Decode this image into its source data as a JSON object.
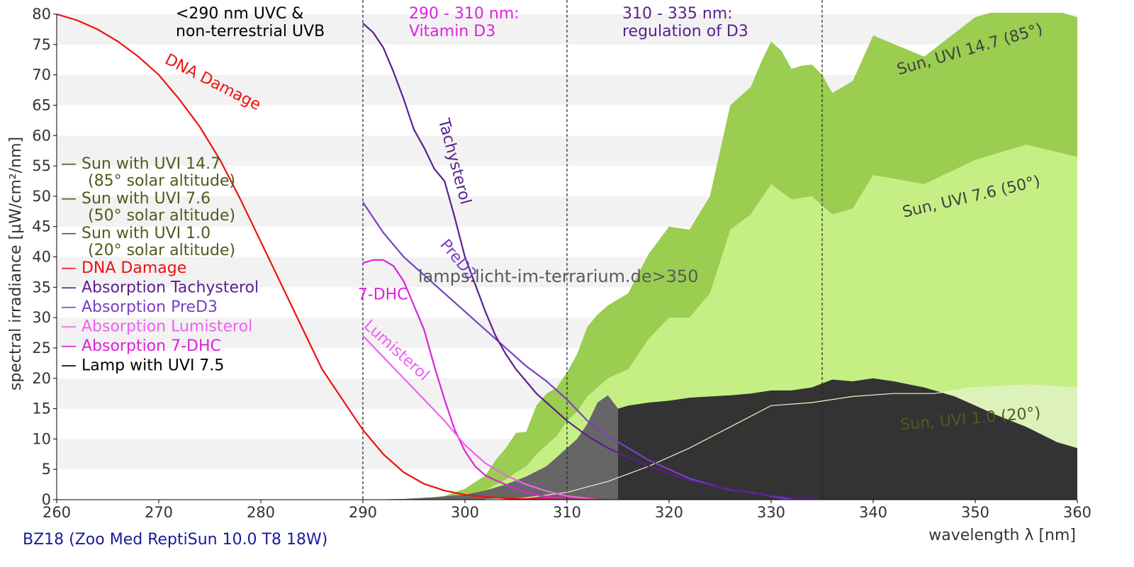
{
  "footer_label": "BZ18 (Zoo Med ReptiSun 10.0 T8 18W)",
  "watermark": "lamps.licht-im-terrarium.de>350",
  "chart_data": {
    "type": "area",
    "xlabel": "wavelength λ [nm]",
    "ylabel": "spectral irradiance [µW/cm²/nm]",
    "xlim": [
      260,
      360
    ],
    "ylim": [
      0,
      80
    ],
    "xticks": [
      260,
      270,
      280,
      290,
      300,
      310,
      320,
      330,
      340,
      350,
      360
    ],
    "yticks": [
      0,
      5,
      10,
      15,
      20,
      25,
      30,
      35,
      40,
      45,
      50,
      55,
      60,
      65,
      70,
      75,
      80
    ],
    "grid": "horizontal alternating bands",
    "legend_position": "left",
    "vlines": [
      290,
      310,
      335
    ],
    "region_labels": [
      {
        "lines": [
          "<290 nm UVC &",
          "non-terrestrial UVB"
        ],
        "color": "#000000"
      },
      {
        "lines": [
          "290 - 310 nm:",
          "Vitamin D3"
        ],
        "color": "#dd22dd"
      },
      {
        "lines": [
          "310 - 335 nm:",
          "regulation of D3"
        ],
        "color": "#5a1f8c"
      }
    ],
    "legend": [
      {
        "line1": "— Sun with UVI 14.7",
        "line2": "(85° solar altitude)",
        "color": "#4a5e1c"
      },
      {
        "line1": "— Sun with UVI 7.6",
        "line2": "(50° solar altitude)",
        "color": "#4a5e1c"
      },
      {
        "line1": "— Sun with UVI 1.0",
        "line2": "(20° solar altitude)",
        "color": "#4a5e1c"
      },
      {
        "line1": "— DNA Damage",
        "line2": "",
        "color": "#ee1111"
      },
      {
        "line1": "— Absorption Tachysterol",
        "line2": "",
        "color": "#5a1f8c"
      },
      {
        "line1": "— Absorption PreD3",
        "line2": "",
        "color": "#7b3fc4"
      },
      {
        "line1": "— Absorption Lumisterol",
        "line2": "",
        "color": "#f060f0"
      },
      {
        "line1": "— Absorption 7-DHC",
        "line2": "",
        "color": "#dd22dd"
      },
      {
        "line1": "— Lamp with UVI 7.5",
        "line2": "",
        "color": "#000000"
      }
    ],
    "series": [
      {
        "name": "Sun, UVI 14.7 (85°)",
        "kind": "area",
        "color": "#9acd50",
        "x": [
          296,
          298,
          300,
          302,
          303,
          304,
          305,
          306,
          307,
          308,
          309,
          310,
          311,
          312,
          313,
          314,
          315,
          316,
          318,
          320,
          322,
          324,
          326,
          328,
          329,
          330,
          331,
          332,
          333,
          334,
          335,
          336,
          338,
          340,
          345,
          350,
          355,
          360
        ],
        "y": [
          0.2,
          0.6,
          1.8,
          4.0,
          6.5,
          8.5,
          11,
          11.2,
          15.5,
          17.5,
          18.5,
          21,
          24,
          28.5,
          30.5,
          32,
          33,
          34,
          40.5,
          45,
          44.5,
          50,
          65,
          68,
          72,
          75.5,
          74,
          71,
          71.5,
          71.7,
          70,
          67,
          69,
          76.5,
          73,
          79.5,
          82,
          79.5
        ]
      },
      {
        "name": "Sun, UVI 7.6 (50°)",
        "kind": "area",
        "color": "#c5ef84",
        "x": [
          298,
          300,
          302,
          303,
          304,
          305,
          306,
          307,
          308,
          309,
          310,
          311,
          312,
          313,
          314,
          316,
          318,
          320,
          322,
          324,
          326,
          328,
          330,
          332,
          334,
          336,
          338,
          340,
          345,
          350,
          355,
          360
        ],
        "y": [
          0.1,
          0.6,
          1.5,
          2.5,
          3.3,
          4.5,
          5.5,
          7.5,
          9.0,
          10.5,
          13,
          14.5,
          17,
          18.5,
          20,
          21.5,
          26.5,
          30,
          30,
          34,
          44.5,
          47,
          52,
          49.5,
          50,
          47,
          48,
          53.5,
          52,
          56,
          58.5,
          56.5
        ]
      },
      {
        "name": "Sun, UVI 1.0 (20°)",
        "kind": "area",
        "color": "#ddf2bb",
        "x": [
          302,
          306,
          310,
          314,
          318,
          322,
          326,
          330,
          334,
          338,
          342,
          346,
          350,
          355,
          360
        ],
        "y": [
          0.05,
          0.3,
          1.2,
          3.0,
          5.5,
          8.5,
          12,
          15.5,
          16,
          17,
          17.5,
          17.5,
          18.5,
          19,
          18.5
        ]
      },
      {
        "name": "Lamp with UVI 7.5",
        "kind": "area",
        "color": "#333333",
        "x": [
          290,
          294,
          297,
          300,
          302,
          304,
          306,
          308,
          309,
          310,
          311,
          312,
          313,
          314,
          315,
          316,
          318,
          320,
          322,
          324,
          326,
          328,
          330,
          332,
          334,
          336,
          338,
          340,
          342,
          345,
          348,
          350,
          352,
          355,
          358,
          360
        ],
        "y": [
          0,
          0.1,
          0.4,
          0.8,
          1.5,
          2.5,
          3.8,
          5.5,
          7,
          8.5,
          10,
          12.5,
          16,
          17.2,
          15,
          15.5,
          16,
          16.3,
          16.8,
          17,
          17.2,
          17.5,
          18,
          18,
          18.5,
          19.8,
          19.5,
          20,
          19.5,
          18.5,
          17,
          15.5,
          14,
          12,
          9.5,
          8.5
        ]
      },
      {
        "name": "Sun with UVI 1.0",
        "kind": "line",
        "color": "#f3f3c8",
        "x": [
          302,
          306,
          310,
          314,
          318,
          322,
          326,
          330,
          334,
          338,
          342,
          346,
          350
        ],
        "y": [
          0.05,
          0.3,
          1.2,
          3.0,
          5.5,
          8.5,
          12,
          15.5,
          16,
          17,
          17.5,
          17.5,
          18.5
        ]
      },
      {
        "name": "Absorption 7-DHC",
        "kind": "line",
        "color": "#dd22dd",
        "x": [
          290,
          291,
          292,
          293,
          294,
          295,
          296,
          297,
          298,
          299,
          300,
          301,
          302,
          303,
          304,
          305,
          306,
          307,
          308,
          309,
          310
        ],
        "y": [
          39,
          39.5,
          39.5,
          38.5,
          36,
          32,
          28,
          22,
          16.5,
          11.5,
          8,
          5.5,
          4.0,
          3.2,
          2.5,
          1.8,
          1.2,
          0.8,
          0.5,
          0.3,
          0.1
        ]
      },
      {
        "name": "Absorption Lumisterol",
        "kind": "line",
        "color": "#f060f0",
        "x": [
          290,
          292,
          294,
          296,
          298,
          300,
          302,
          304,
          306,
          308,
          310,
          312,
          313
        ],
        "y": [
          27,
          23.5,
          20,
          16.5,
          13,
          9,
          6,
          4.0,
          2.5,
          1.4,
          0.6,
          0.2,
          0
        ]
      },
      {
        "name": "Absorption PreD3",
        "kind": "line",
        "color": "#7b3fc4",
        "x": [
          290,
          292,
          294,
          296,
          298,
          300,
          302,
          304,
          306,
          308,
          310,
          312,
          314,
          316,
          318,
          320,
          322,
          324,
          326,
          328,
          330,
          332
        ],
        "y": [
          49,
          44,
          40,
          37,
          34,
          31,
          28,
          25,
          22,
          19.5,
          16.5,
          13,
          10.5,
          8.5,
          6.5,
          5.0,
          3.5,
          2.5,
          1.6,
          1.2,
          0.6,
          0
        ]
      },
      {
        "name": "Absorption Tachysterol",
        "kind": "line",
        "color": "#5a1f8c",
        "x": [
          290,
          291,
          292,
          293,
          294,
          295,
          296,
          297,
          298,
          299,
          300,
          301,
          302,
          303,
          304,
          305,
          306,
          307,
          308,
          310,
          312,
          314,
          316,
          318,
          320,
          322,
          324,
          326,
          328,
          330,
          332,
          334,
          335
        ],
        "y": [
          78.5,
          77,
          74.5,
          70.5,
          66,
          61,
          58,
          54.5,
          52.5,
          46.5,
          40,
          35.5,
          31,
          27,
          24,
          21.5,
          19.5,
          17.5,
          16,
          13,
          10.5,
          8.5,
          7,
          5.5,
          4.3,
          3.2,
          2.4,
          1.7,
          1.1,
          0.7,
          0.3,
          0.1,
          0
        ]
      },
      {
        "name": "DNA Damage",
        "kind": "line",
        "color": "#ee1111",
        "x": [
          260,
          262,
          264,
          266,
          268,
          270,
          272,
          274,
          276,
          278,
          280,
          282,
          284,
          286,
          288,
          290,
          292,
          294,
          296,
          298,
          300,
          302,
          304,
          306,
          308,
          310,
          312,
          314
        ],
        "y": [
          80,
          79,
          77.5,
          75.5,
          73,
          70,
          66,
          61.5,
          56,
          49.5,
          42.5,
          35.5,
          28.5,
          21.5,
          16.5,
          11.5,
          7.5,
          4.5,
          2.6,
          1.5,
          0.8,
          0.45,
          0.25,
          0.13,
          0.07,
          0.04,
          0.02,
          0
        ]
      }
    ],
    "annotations": [
      {
        "text": "DNA Damage",
        "color": "#ee1111",
        "at_x": 270.5,
        "at_y": 72,
        "rotate": 27
      },
      {
        "text": "Tachysterol",
        "color": "#5a1f8c",
        "at_x": 297.4,
        "at_y": 62.5,
        "rotate": 75
      },
      {
        "text": "PreD3",
        "color": "#7b3fc4",
        "at_x": 297.5,
        "at_y": 42,
        "rotate": 50
      },
      {
        "text": "7-DHC",
        "color": "#dd22dd",
        "at_x": 289.5,
        "at_y": 33,
        "rotate": 0
      },
      {
        "text": "Lumisterol",
        "color": "#f060f0",
        "at_x": 290,
        "at_y": 28.5,
        "rotate": 42
      },
      {
        "text": "Sun, UVI 14.7 (85°)",
        "color": "#404040",
        "at_x": 342.5,
        "at_y": 70,
        "rotate": -16
      },
      {
        "text": "Sun, UVI 7.6 (50°)",
        "color": "#404040",
        "at_x": 343,
        "at_y": 46.5,
        "rotate": -13
      },
      {
        "text": "Sun, UVI 1.0 (20°)",
        "color": "#4a5e1c",
        "at_x": 342.7,
        "at_y": 11.5,
        "rotate": -5
      }
    ]
  }
}
